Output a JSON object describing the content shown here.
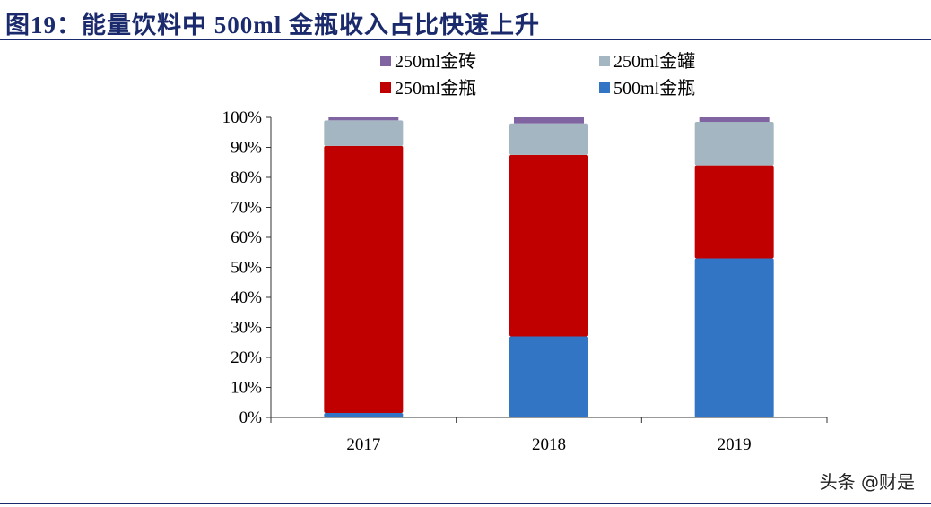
{
  "title": "图19：能量饮料中 500ml 金瓶收入占比快速上升",
  "watermark": "头条 @财是",
  "chart_data": {
    "type": "bar",
    "stacked": true,
    "categories": [
      "2017",
      "2018",
      "2019"
    ],
    "series": [
      {
        "name": "500ml金瓶",
        "color": "#3375c5",
        "values": [
          1.5,
          27,
          53
        ]
      },
      {
        "name": "250ml金瓶",
        "color": "#c00000",
        "values": [
          89,
          60.5,
          31
        ]
      },
      {
        "name": "250ml金罐",
        "color": "#a3b6c1",
        "values": [
          8.5,
          10.5,
          14.5
        ]
      },
      {
        "name": "250ml金砖",
        "color": "#8064a2",
        "values": [
          1,
          2,
          1.5
        ]
      }
    ],
    "legend_order": [
      "250ml金砖",
      "250ml金罐",
      "250ml金瓶",
      "500ml金瓶"
    ],
    "ylim": [
      0,
      100
    ],
    "yticks": [
      "0%",
      "10%",
      "20%",
      "30%",
      "40%",
      "50%",
      "60%",
      "70%",
      "80%",
      "90%",
      "100%"
    ],
    "legend_position": "top",
    "grid": false,
    "xlabel": "",
    "ylabel": ""
  }
}
